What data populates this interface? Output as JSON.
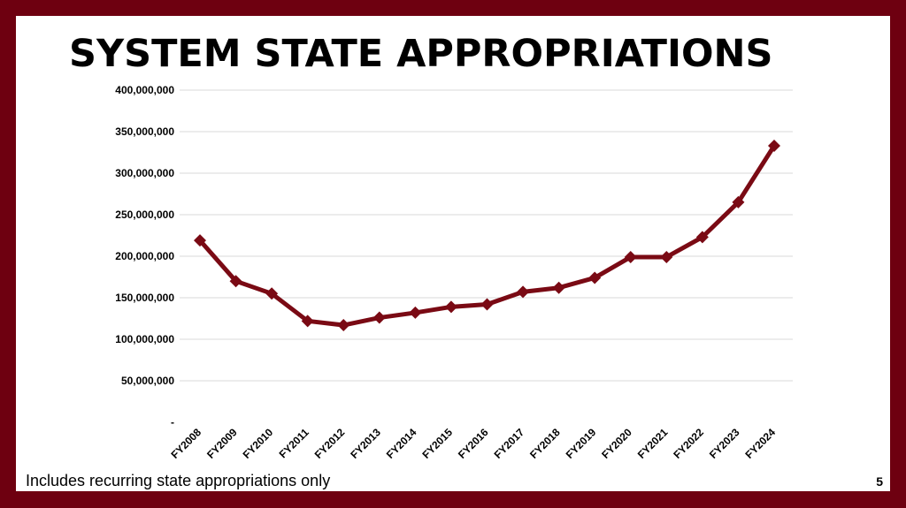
{
  "slide": {
    "title": "SYSTEM STATE APPROPRIATIONS",
    "footnote": "Includes recurring state appropriations only",
    "page_number": "5"
  },
  "colors": {
    "frame": "#6e0010",
    "series_line": "#7a0a14",
    "grid": "#d9d9d9"
  },
  "chart_data": {
    "type": "line",
    "title": "",
    "xlabel": "",
    "ylabel": "",
    "ylim": [
      0,
      400000000
    ],
    "y_ticks": [
      0,
      50000000,
      100000000,
      150000000,
      200000000,
      250000000,
      300000000,
      350000000,
      400000000
    ],
    "y_tick_labels": [
      "-",
      "50,000,000",
      "100,000,000",
      "150,000,000",
      "200,000,000",
      "250,000,000",
      "300,000,000",
      "350,000,000",
      "400,000,000"
    ],
    "grid": true,
    "legend": "none",
    "marker": "diamond",
    "categories": [
      "FY2008",
      "FY2009",
      "FY2010",
      "FY2011",
      "FY2012",
      "FY2013",
      "FY2014",
      "FY2015",
      "FY2016",
      "FY2017",
      "FY2018",
      "FY2019",
      "FY2020",
      "FY2021",
      "FY2022",
      "FY2023",
      "FY2024"
    ],
    "series": [
      {
        "values": [
          219000000,
          170000000,
          155000000,
          122000000,
          117000000,
          126000000,
          132000000,
          139000000,
          142000000,
          157000000,
          162000000,
          174000000,
          199000000,
          199000000,
          223000000,
          265000000,
          333000000
        ]
      }
    ]
  }
}
